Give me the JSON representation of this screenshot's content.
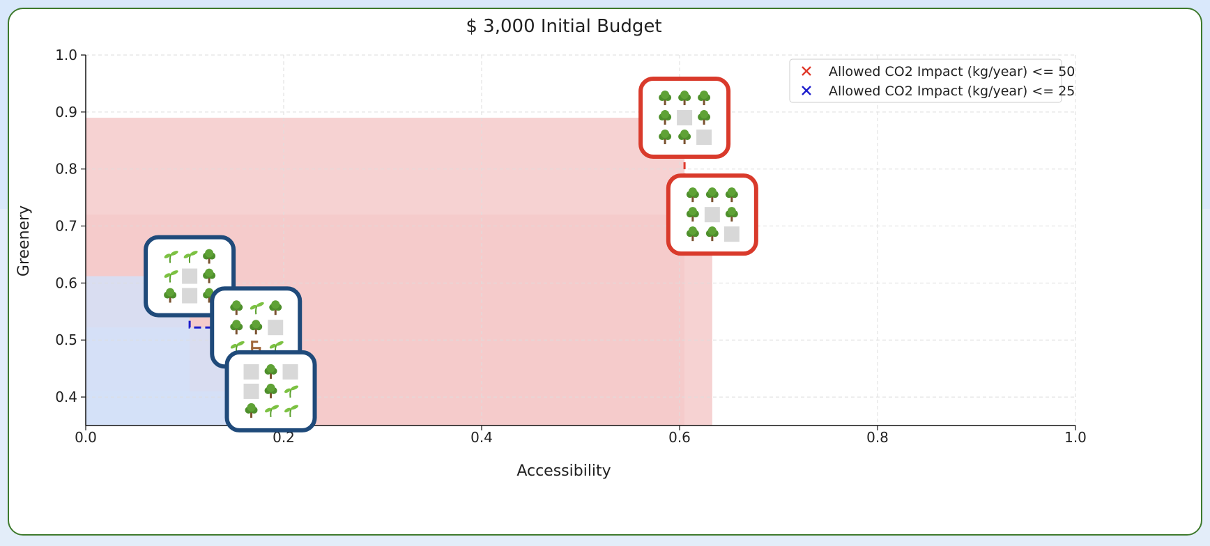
{
  "chart_data": {
    "type": "scatter",
    "title": "$ 3,000 Initial Budget",
    "xlabel": "Accessibility",
    "ylabel": "Greenery",
    "xlim": [
      0.0,
      1.0
    ],
    "ylim": [
      0.35,
      1.0
    ],
    "xticks": [
      "0.0",
      "0.2",
      "0.4",
      "0.6",
      "0.8",
      "1.0"
    ],
    "yticks": [
      "0.4",
      "0.5",
      "0.6",
      "0.7",
      "0.8",
      "0.9",
      "1.0"
    ],
    "grid": true,
    "legend_position": "top-right",
    "series": [
      {
        "name": "Allowed CO2 Impact (kg/year) <= 50",
        "color": "#e03a2c",
        "frame_color": "#d93a2b",
        "region_color": "#f5caca",
        "points": [
          {
            "x": 0.605,
            "y": 0.89,
            "grid": [
              "tree",
              "tree",
              "tree",
              "tree",
              "empty",
              "tree",
              "tree",
              "tree",
              "empty"
            ]
          },
          {
            "x": 0.633,
            "y": 0.72,
            "grid": [
              "tree",
              "tree",
              "tree",
              "tree",
              "empty",
              "tree",
              "tree",
              "tree",
              "empty"
            ]
          }
        ]
      },
      {
        "name": "Allowed CO2 Impact (kg/year) <= 25",
        "color": "#1c1ccc",
        "frame_color": "#1f4a7a",
        "region_color": "#d3e1f8",
        "points": [
          {
            "x": 0.105,
            "y": 0.612,
            "grid": [
              "sprout",
              "sprout",
              "tree",
              "sprout",
              "empty",
              "tree",
              "tree",
              "empty",
              "tree"
            ]
          },
          {
            "x": 0.172,
            "y": 0.522,
            "grid": [
              "tree",
              "sprout",
              "tree",
              "tree",
              "tree",
              "empty",
              "sprout",
              "bench",
              "sprout"
            ]
          },
          {
            "x": 0.187,
            "y": 0.41,
            "grid": [
              "empty",
              "tree",
              "empty",
              "empty",
              "tree",
              "sprout",
              "tree",
              "sprout",
              "sprout"
            ]
          }
        ]
      }
    ]
  }
}
